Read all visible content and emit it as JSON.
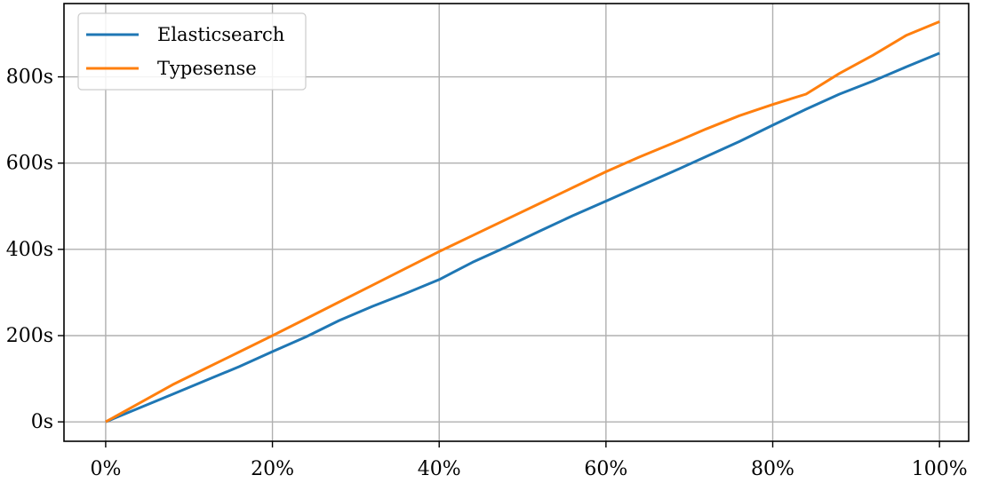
{
  "chart_data": {
    "type": "line",
    "title": "",
    "xlabel": "",
    "ylabel": "",
    "xlim": [
      -0.05,
      1.035
    ],
    "ylim": [
      -45,
      970
    ],
    "x_ticks": [
      0,
      0.2,
      0.4,
      0.6,
      0.8,
      1.0
    ],
    "x_tick_labels": [
      "0%",
      "20%",
      "40%",
      "60%",
      "80%",
      "100%"
    ],
    "y_ticks": [
      0,
      200,
      400,
      600,
      800
    ],
    "y_tick_labels": [
      "0s",
      "200s",
      "400s",
      "600s",
      "800s"
    ],
    "grid": true,
    "legend_position": "top-left",
    "series": [
      {
        "name": "Elasticsearch",
        "color": "#1f77b4",
        "x": [
          0,
          0.04,
          0.08,
          0.12,
          0.16,
          0.2,
          0.24,
          0.28,
          0.32,
          0.36,
          0.4,
          0.44,
          0.48,
          0.52,
          0.56,
          0.6,
          0.64,
          0.68,
          0.72,
          0.76,
          0.8,
          0.84,
          0.88,
          0.92,
          0.96,
          1.0
        ],
        "y": [
          0,
          32,
          64,
          96,
          128,
          163,
          197,
          235,
          268,
          298,
          330,
          370,
          405,
          442,
          478,
          512,
          546,
          580,
          615,
          650,
          688,
          725,
          760,
          790,
          823,
          855
        ]
      },
      {
        "name": "Typesense",
        "color": "#ff7f0e",
        "x": [
          0,
          0.04,
          0.08,
          0.12,
          0.16,
          0.2,
          0.24,
          0.28,
          0.32,
          0.36,
          0.4,
          0.44,
          0.48,
          0.52,
          0.56,
          0.6,
          0.64,
          0.68,
          0.72,
          0.76,
          0.8,
          0.84,
          0.88,
          0.92,
          0.96,
          1.0
        ],
        "y": [
          0,
          43,
          86,
          124,
          162,
          200,
          239,
          278,
          317,
          356,
          395,
          432,
          469,
          506,
          543,
          580,
          614,
          646,
          679,
          710,
          736,
          760,
          808,
          850,
          896,
          928
        ]
      }
    ]
  }
}
